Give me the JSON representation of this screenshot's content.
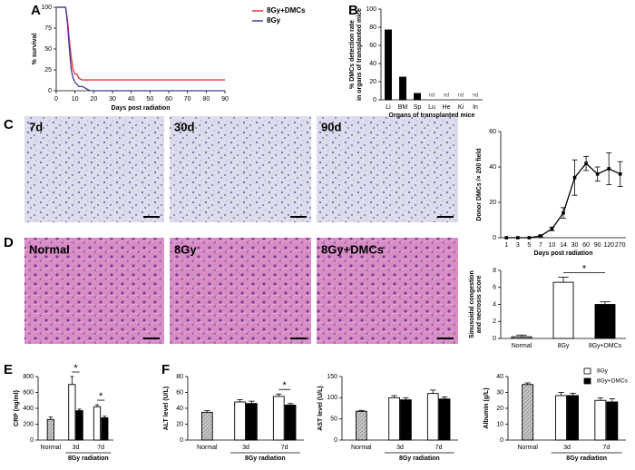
{
  "figure": {
    "letters": [
      "A",
      "B",
      "C",
      "D",
      "E",
      "F"
    ],
    "micrographs_c": [
      "7d",
      "30d",
      "90d"
    ],
    "micrographs_d": [
      "Normal",
      "8Gy",
      "8Gy+DMCs"
    ]
  },
  "chart_data": [
    {
      "type": "line",
      "xlabel": "Days post radiation",
      "ylabel": "% survival",
      "x": [
        0,
        5,
        6,
        7,
        8,
        9,
        10,
        11,
        12,
        14,
        18,
        90
      ],
      "xlim": [
        0,
        90
      ],
      "xticks": [
        0,
        10,
        20,
        30,
        40,
        50,
        60,
        70,
        80,
        90
      ],
      "ylim": [
        0,
        100
      ],
      "yticks": [
        0,
        25,
        50,
        75,
        100
      ],
      "legend": "right",
      "series": [
        {
          "name": "8Gy+DMCs",
          "color": "#e8303a",
          "values": [
            100,
            100,
            85,
            60,
            40,
            25,
            20,
            20,
            15,
            13,
            13,
            13
          ]
        },
        {
          "name": "8Gy",
          "color": "#3c3c9c",
          "values": [
            100,
            100,
            80,
            50,
            25,
            15,
            10,
            8,
            5,
            5,
            0,
            0
          ]
        }
      ]
    },
    {
      "type": "bar",
      "xlabel": "Organs of transplanted mice",
      "ylabel": [
        "% DMCs detection rate",
        "in organs of transplanted mice"
      ],
      "categories": [
        "Li",
        "BM",
        "Sp",
        "Lu",
        "He",
        "Ki",
        "In"
      ],
      "values": [
        77,
        25,
        7,
        null,
        null,
        null,
        null
      ],
      "value_labels": [
        null,
        null,
        null,
        "nd",
        "nd",
        "nd",
        "nd"
      ],
      "color": "#000000",
      "ylim": [
        0,
        100
      ],
      "yticks": [
        0,
        20,
        40,
        60,
        80,
        100
      ]
    },
    {
      "type": "line",
      "xlabel": "Days post radiation",
      "ylabel": "Donor DMCs /× 200 field",
      "categories": [
        "1",
        "3",
        "5",
        "7",
        "10",
        "14",
        "30",
        "60",
        "90",
        "120",
        "270"
      ],
      "values": [
        0,
        0,
        0,
        1,
        5,
        14,
        34,
        42,
        36,
        39,
        36
      ],
      "errors": [
        0,
        0,
        0,
        0.5,
        1,
        3,
        10,
        4,
        4,
        9,
        7
      ],
      "color": "#000000",
      "ylim": [
        0,
        60
      ],
      "yticks": [
        0,
        20,
        40,
        60
      ]
    },
    {
      "type": "bar",
      "ylabel": [
        "Sinusoidal congestion",
        "and necrosis score"
      ],
      "categories": [
        "Normal",
        "8Gy",
        "8Gy+DMCs"
      ],
      "values": [
        0.2,
        6.6,
        4.0
      ],
      "errors": [
        0.2,
        0.6,
        0.3
      ],
      "colors": [
        "#bbbbbb",
        "#ffffff",
        "#000000"
      ],
      "patterns": [
        "hatch",
        null,
        null
      ],
      "ylim": [
        0,
        8
      ],
      "yticks": [
        0,
        2,
        4,
        6,
        8
      ],
      "annotations": [
        {
          "text": "*",
          "between": [
            "8Gy",
            "8Gy+DMCs"
          ]
        }
      ]
    },
    {
      "type": "bar",
      "xlabel": "8Gy radiation",
      "ylabel": "CRP (ng/ml)",
      "categories": [
        "Normal",
        "3d",
        "7d"
      ],
      "series": [
        {
          "color": "#bbbbbb",
          "pattern": "hatch",
          "values": [
            260,
            null,
            null
          ],
          "errors": [
            30,
            null,
            null
          ]
        },
        {
          "color": "#ffffff",
          "values": [
            null,
            700,
            420
          ],
          "errors": [
            null,
            100,
            25
          ]
        },
        {
          "color": "#000000",
          "values": [
            null,
            370,
            280
          ],
          "errors": [
            null,
            20,
            20
          ]
        }
      ],
      "ylim": [
        0,
        800
      ],
      "yticks": [
        0,
        200,
        400,
        600,
        800
      ],
      "annotations": [
        {
          "text": "*",
          "category": "3d"
        },
        {
          "text": "*",
          "category": "7d"
        }
      ]
    },
    {
      "type": "bar",
      "xlabel": "8Gy radiation",
      "ylabel": "ALT level (U/L)",
      "categories": [
        "Normal",
        "3d",
        "7d"
      ],
      "series": [
        {
          "color": "#bbbbbb",
          "pattern": "hatch",
          "values": [
            35,
            null,
            null
          ],
          "errors": [
            2,
            null,
            null
          ]
        },
        {
          "color": "#ffffff",
          "values": [
            null,
            48,
            55
          ],
          "errors": [
            null,
            3,
            3
          ]
        },
        {
          "color": "#000000",
          "values": [
            null,
            46,
            44
          ],
          "errors": [
            null,
            3,
            2
          ]
        }
      ],
      "ylim": [
        0,
        80
      ],
      "yticks": [
        0,
        20,
        40,
        60,
        80
      ],
      "annotations": [
        {
          "text": "*",
          "category": "7d"
        }
      ]
    },
    {
      "type": "bar",
      "xlabel": "8Gy radiation",
      "ylabel": "AST level (U/L)",
      "categories": [
        "Normal",
        "3d",
        "7d"
      ],
      "series": [
        {
          "color": "#bbbbbb",
          "pattern": "hatch",
          "values": [
            68,
            null,
            null
          ],
          "errors": [
            2,
            null,
            null
          ]
        },
        {
          "color": "#ffffff",
          "values": [
            null,
            100,
            110
          ],
          "errors": [
            null,
            5,
            8
          ]
        },
        {
          "color": "#000000",
          "values": [
            null,
            95,
            97
          ],
          "errors": [
            null,
            5,
            5
          ]
        }
      ],
      "ylim": [
        0,
        150
      ],
      "yticks": [
        0,
        50,
        100,
        150
      ]
    },
    {
      "type": "bar",
      "xlabel": "8Gy radiation",
      "ylabel": "Albumin (g/L)",
      "categories": [
        "Normal",
        "3d",
        "7d"
      ],
      "legend": "top-right",
      "series": [
        {
          "color": "#bbbbbb",
          "pattern": "hatch",
          "values": [
            35,
            null,
            null
          ],
          "errors": [
            1,
            null,
            null
          ]
        },
        {
          "name": "8Gy",
          "color": "#ffffff",
          "values": [
            null,
            28,
            25
          ],
          "errors": [
            null,
            2,
            1.5
          ]
        },
        {
          "name": "8Gy+DMCs",
          "color": "#000000",
          "values": [
            null,
            28,
            24
          ],
          "errors": [
            null,
            1.5,
            2
          ]
        }
      ],
      "ylim": [
        0,
        40
      ],
      "yticks": [
        0,
        10,
        20,
        30,
        40
      ]
    }
  ]
}
